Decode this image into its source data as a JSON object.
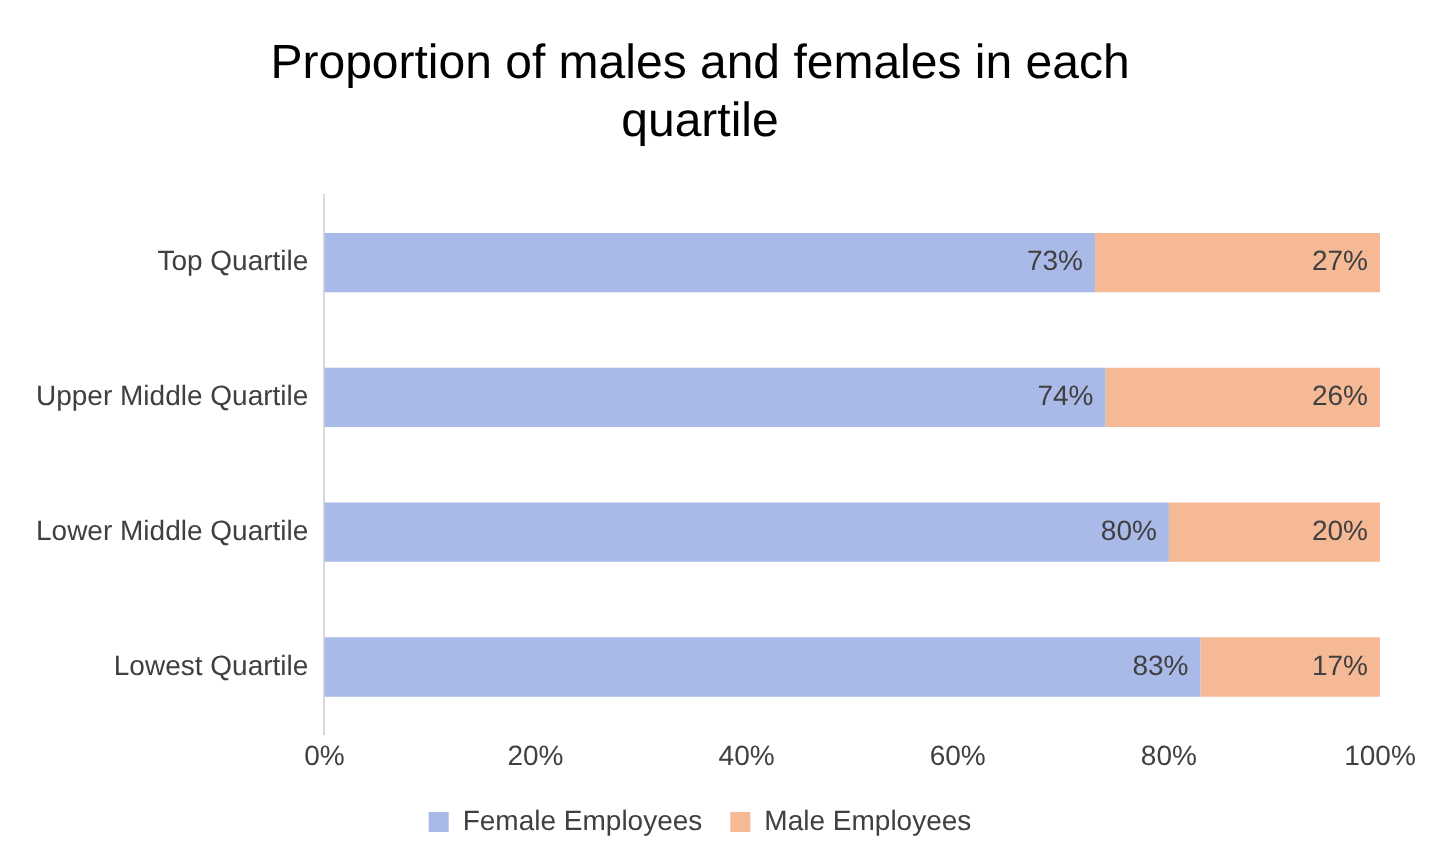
{
  "chart_data": {
    "type": "bar",
    "orientation": "horizontal",
    "stacked": true,
    "title": "Proportion of males and females in each quartile",
    "categories": [
      "Top Quartile",
      "Upper Middle Quartile",
      "Lower Middle Quartile",
      "Lowest Quartile"
    ],
    "series": [
      {
        "name": "Female Employees",
        "color": "#a9b9e8",
        "values": [
          73,
          74,
          80,
          83
        ],
        "value_labels": [
          "73%",
          "74%",
          "80%",
          "83%"
        ]
      },
      {
        "name": "Male Employees",
        "color": "#f6b995",
        "values": [
          27,
          26,
          20,
          17
        ],
        "value_labels": [
          "27%",
          "26%",
          "20%",
          "17%"
        ]
      }
    ],
    "xlim": [
      0,
      100
    ],
    "xticks": [
      {
        "value": 0,
        "label": "0%"
      },
      {
        "value": 20,
        "label": "20%"
      },
      {
        "value": 40,
        "label": "40%"
      },
      {
        "value": 60,
        "label": "60%"
      },
      {
        "value": 80,
        "label": "80%"
      },
      {
        "value": 100,
        "label": "100%"
      }
    ],
    "grid": false,
    "legend": "bottom"
  }
}
